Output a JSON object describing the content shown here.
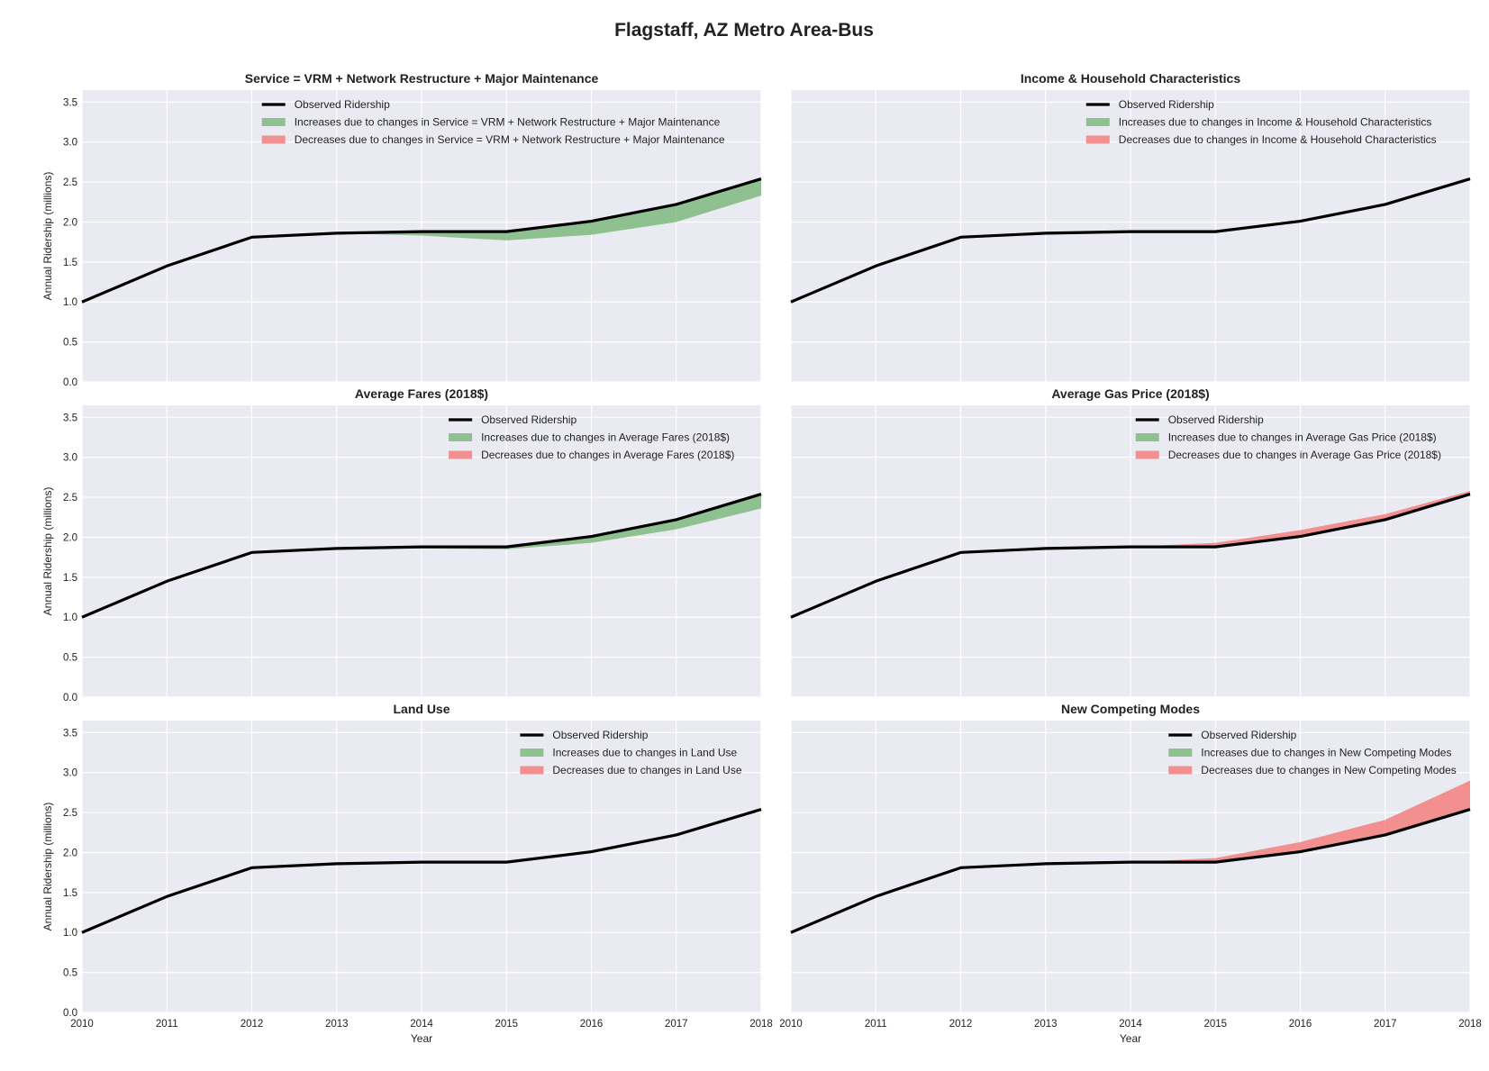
{
  "figure": {
    "title": "Flagstaff, AZ Metro Area-Bus"
  },
  "style": {
    "panel_bg": "#eaeaf2",
    "grid": "#ffffff",
    "observed_color": "#000000",
    "increase_color": "#8fc08f",
    "decrease_color": "#f29090",
    "text_color": "#222222"
  },
  "chart_data": [
    {
      "type": "area",
      "title": "Service = VRM + Network Restructure + Major Maintenance",
      "xlabel": "",
      "ylabel": "Annual Ridership (millions)",
      "xlim": [
        2010,
        2018
      ],
      "ylim": [
        0,
        3.65
      ],
      "grid": true,
      "legend": "top-right",
      "x": [
        2010,
        2011,
        2012,
        2013,
        2014,
        2015,
        2016,
        2017,
        2018
      ],
      "x_ticks": [
        2010,
        2011,
        2012,
        2013,
        2014,
        2015,
        2016,
        2017,
        2018
      ],
      "y_ticks": [
        "0.0",
        "0.5",
        "1.0",
        "1.5",
        "2.0",
        "2.5",
        "3.0",
        "3.5"
      ],
      "observed": [
        1.0,
        1.45,
        1.81,
        1.86,
        1.88,
        1.88,
        2.01,
        2.22,
        2.54
      ],
      "without": [
        1.0,
        1.45,
        1.81,
        1.86,
        1.83,
        1.77,
        1.84,
        2.0,
        2.33
      ],
      "legend_entries": [
        "Observed Ridership",
        "Increases due to changes in Service = VRM + Network Restructure + Major Maintenance",
        "Decreases due to changes in Service = VRM + Network Restructure + Major Maintenance"
      ]
    },
    {
      "type": "area",
      "title": "Income & Household Characteristics",
      "xlabel": "",
      "ylabel": "",
      "xlim": [
        2010,
        2018
      ],
      "ylim": [
        0,
        3.65
      ],
      "grid": true,
      "legend": "top-right",
      "x": [
        2010,
        2011,
        2012,
        2013,
        2014,
        2015,
        2016,
        2017,
        2018
      ],
      "x_ticks": [
        2010,
        2011,
        2012,
        2013,
        2014,
        2015,
        2016,
        2017,
        2018
      ],
      "y_ticks": [],
      "observed": [
        1.0,
        1.45,
        1.81,
        1.86,
        1.88,
        1.88,
        2.01,
        2.22,
        2.54
      ],
      "without": [
        1.0,
        1.45,
        1.81,
        1.84,
        1.86,
        1.86,
        2.01,
        2.22,
        2.54
      ],
      "legend_entries": [
        "Observed Ridership",
        "Increases due to changes in Income & Household Characteristics",
        "Decreases due to changes in Income & Household Characteristics"
      ]
    },
    {
      "type": "area",
      "title": "Average Fares (2018$)",
      "xlabel": "",
      "ylabel": "Annual Ridership (millions)",
      "xlim": [
        2010,
        2018
      ],
      "ylim": [
        0,
        3.65
      ],
      "grid": true,
      "legend": "top-right",
      "x": [
        2010,
        2011,
        2012,
        2013,
        2014,
        2015,
        2016,
        2017,
        2018
      ],
      "x_ticks": [
        2010,
        2011,
        2012,
        2013,
        2014,
        2015,
        2016,
        2017,
        2018
      ],
      "y_ticks": [
        "0.0",
        "0.5",
        "1.0",
        "1.5",
        "2.0",
        "2.5",
        "3.0",
        "3.5"
      ],
      "observed": [
        1.0,
        1.45,
        1.81,
        1.86,
        1.88,
        1.88,
        2.01,
        2.22,
        2.54
      ],
      "without": [
        1.0,
        1.45,
        1.81,
        1.86,
        1.86,
        1.85,
        1.93,
        2.1,
        2.36
      ],
      "legend_entries": [
        "Observed Ridership",
        "Increases due to changes in Average Fares (2018$)",
        "Decreases due to changes in Average Fares (2018$)"
      ]
    },
    {
      "type": "area",
      "title": "Average Gas Price (2018$)",
      "xlabel": "",
      "ylabel": "",
      "xlim": [
        2010,
        2018
      ],
      "ylim": [
        0,
        3.65
      ],
      "grid": true,
      "legend": "top-right",
      "x": [
        2010,
        2011,
        2012,
        2013,
        2014,
        2015,
        2016,
        2017,
        2018
      ],
      "x_ticks": [
        2010,
        2011,
        2012,
        2013,
        2014,
        2015,
        2016,
        2017,
        2018
      ],
      "y_ticks": [],
      "observed": [
        1.0,
        1.45,
        1.81,
        1.86,
        1.88,
        1.88,
        2.01,
        2.22,
        2.54
      ],
      "without": [
        1.0,
        1.45,
        1.81,
        1.86,
        1.88,
        1.93,
        2.09,
        2.29,
        2.58
      ],
      "legend_entries": [
        "Observed Ridership",
        "Increases due to changes in Average Gas Price (2018$)",
        "Decreases due to changes in Average Gas Price (2018$)"
      ]
    },
    {
      "type": "area",
      "title": "Land Use",
      "xlabel": "Year",
      "ylabel": "Annual Ridership (millions)",
      "xlim": [
        2010,
        2018
      ],
      "ylim": [
        0,
        3.65
      ],
      "grid": true,
      "legend": "top-right",
      "x": [
        2010,
        2011,
        2012,
        2013,
        2014,
        2015,
        2016,
        2017,
        2018
      ],
      "x_ticks": [
        2010,
        2011,
        2012,
        2013,
        2014,
        2015,
        2016,
        2017,
        2018
      ],
      "y_ticks": [
        "0.0",
        "0.5",
        "1.0",
        "1.5",
        "2.0",
        "2.5",
        "3.0",
        "3.5"
      ],
      "observed": [
        1.0,
        1.45,
        1.81,
        1.86,
        1.88,
        1.88,
        2.01,
        2.22,
        2.54
      ],
      "without": [
        1.0,
        1.45,
        1.81,
        1.86,
        1.88,
        1.88,
        2.01,
        2.22,
        2.54
      ],
      "legend_entries": [
        "Observed Ridership",
        "Increases due to changes in Land Use",
        "Decreases due to changes in Land Use"
      ]
    },
    {
      "type": "area",
      "title": "New Competing Modes",
      "xlabel": "Year",
      "ylabel": "",
      "xlim": [
        2010,
        2018
      ],
      "ylim": [
        0,
        3.65
      ],
      "grid": true,
      "legend": "top-right",
      "x": [
        2010,
        2011,
        2012,
        2013,
        2014,
        2015,
        2016,
        2017,
        2018
      ],
      "x_ticks": [
        2010,
        2011,
        2012,
        2013,
        2014,
        2015,
        2016,
        2017,
        2018
      ],
      "y_ticks": [],
      "observed": [
        1.0,
        1.45,
        1.81,
        1.86,
        1.88,
        1.88,
        2.01,
        2.22,
        2.54
      ],
      "without": [
        1.0,
        1.45,
        1.81,
        1.86,
        1.88,
        1.93,
        2.13,
        2.41,
        2.9
      ],
      "legend_entries": [
        "Observed Ridership",
        "Increases due to changes in New Competing Modes",
        "Decreases due to changes in New Competing Modes"
      ]
    }
  ]
}
